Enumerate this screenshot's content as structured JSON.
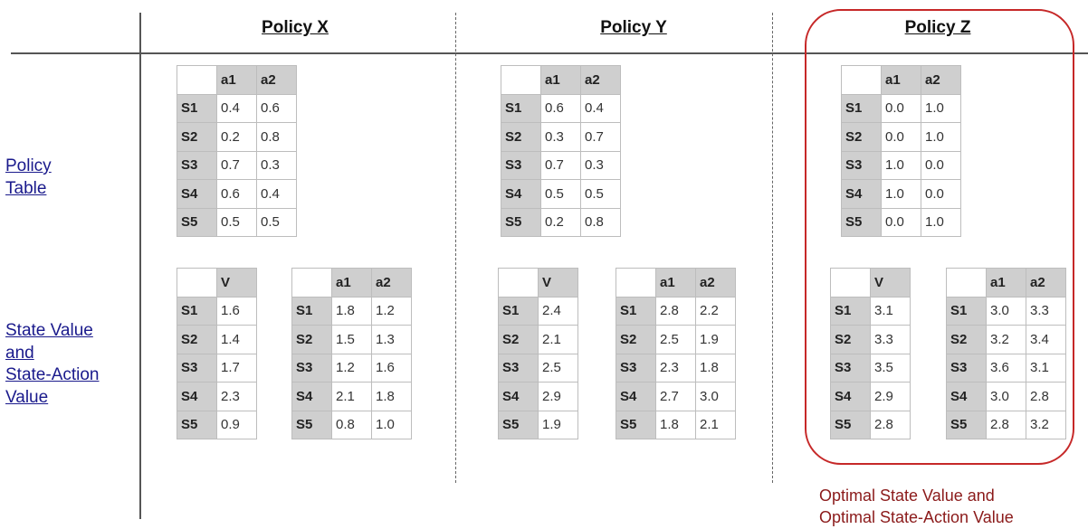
{
  "policies": [
    {
      "name": "Policy X",
      "policy_table": {
        "headers": [
          "",
          "a1",
          "a2"
        ],
        "rows": [
          [
            "S1",
            "0.4",
            "0.6"
          ],
          [
            "S2",
            "0.2",
            "0.8"
          ],
          [
            "S3",
            "0.7",
            "0.3"
          ],
          [
            "S4",
            "0.6",
            "0.4"
          ],
          [
            "S5",
            "0.5",
            "0.5"
          ]
        ]
      },
      "state_value": {
        "headers": [
          "",
          "V"
        ],
        "rows": [
          [
            "S1",
            "1.6"
          ],
          [
            "S2",
            "1.4"
          ],
          [
            "S3",
            "1.7"
          ],
          [
            "S4",
            "2.3"
          ],
          [
            "S5",
            "0.9"
          ]
        ]
      },
      "state_action_value": {
        "headers": [
          "",
          "a1",
          "a2"
        ],
        "rows": [
          [
            "S1",
            "1.8",
            "1.2"
          ],
          [
            "S2",
            "1.5",
            "1.3"
          ],
          [
            "S3",
            "1.2",
            "1.6"
          ],
          [
            "S4",
            "2.1",
            "1.8"
          ],
          [
            "S5",
            "0.8",
            "1.0"
          ]
        ]
      }
    },
    {
      "name": "Policy Y",
      "policy_table": {
        "headers": [
          "",
          "a1",
          "a2"
        ],
        "rows": [
          [
            "S1",
            "0.6",
            "0.4"
          ],
          [
            "S2",
            "0.3",
            "0.7"
          ],
          [
            "S3",
            "0.7",
            "0.3"
          ],
          [
            "S4",
            "0.5",
            "0.5"
          ],
          [
            "S5",
            "0.2",
            "0.8"
          ]
        ]
      },
      "state_value": {
        "headers": [
          "",
          "V"
        ],
        "rows": [
          [
            "S1",
            "2.4"
          ],
          [
            "S2",
            "2.1"
          ],
          [
            "S3",
            "2.5"
          ],
          [
            "S4",
            "2.9"
          ],
          [
            "S5",
            "1.9"
          ]
        ]
      },
      "state_action_value": {
        "headers": [
          "",
          "a1",
          "a2"
        ],
        "rows": [
          [
            "S1",
            "2.8",
            "2.2"
          ],
          [
            "S2",
            "2.5",
            "1.9"
          ],
          [
            "S3",
            "2.3",
            "1.8"
          ],
          [
            "S4",
            "2.7",
            "3.0"
          ],
          [
            "S5",
            "1.8",
            "2.1"
          ]
        ]
      }
    },
    {
      "name": "Policy Z",
      "policy_table": {
        "headers": [
          "",
          "a1",
          "a2"
        ],
        "rows": [
          [
            "S1",
            "0.0",
            "1.0"
          ],
          [
            "S2",
            "0.0",
            "1.0"
          ],
          [
            "S3",
            "1.0",
            "0.0"
          ],
          [
            "S4",
            "1.0",
            "0.0"
          ],
          [
            "S5",
            "0.0",
            "1.0"
          ]
        ]
      },
      "state_value": {
        "headers": [
          "",
          "V"
        ],
        "rows": [
          [
            "S1",
            "3.1"
          ],
          [
            "S2",
            "3.3"
          ],
          [
            "S3",
            "3.5"
          ],
          [
            "S4",
            "2.9"
          ],
          [
            "S5",
            "2.8"
          ]
        ]
      },
      "state_action_value": {
        "headers": [
          "",
          "a1",
          "a2"
        ],
        "rows": [
          [
            "S1",
            "3.0",
            "3.3"
          ],
          [
            "S2",
            "3.2",
            "3.4"
          ],
          [
            "S3",
            "3.6",
            "3.1"
          ],
          [
            "S4",
            "3.0",
            "2.8"
          ],
          [
            "S5",
            "2.8",
            "3.2"
          ]
        ]
      }
    }
  ],
  "row_labels": {
    "policy_table": [
      "Policy",
      "Table"
    ],
    "values": [
      "State Value",
      "and",
      "State-Action",
      "Value"
    ]
  },
  "highlight": {
    "color": "#c62828",
    "note_lines": [
      "Optimal State Value and",
      "Optimal State-Action Value"
    ]
  }
}
